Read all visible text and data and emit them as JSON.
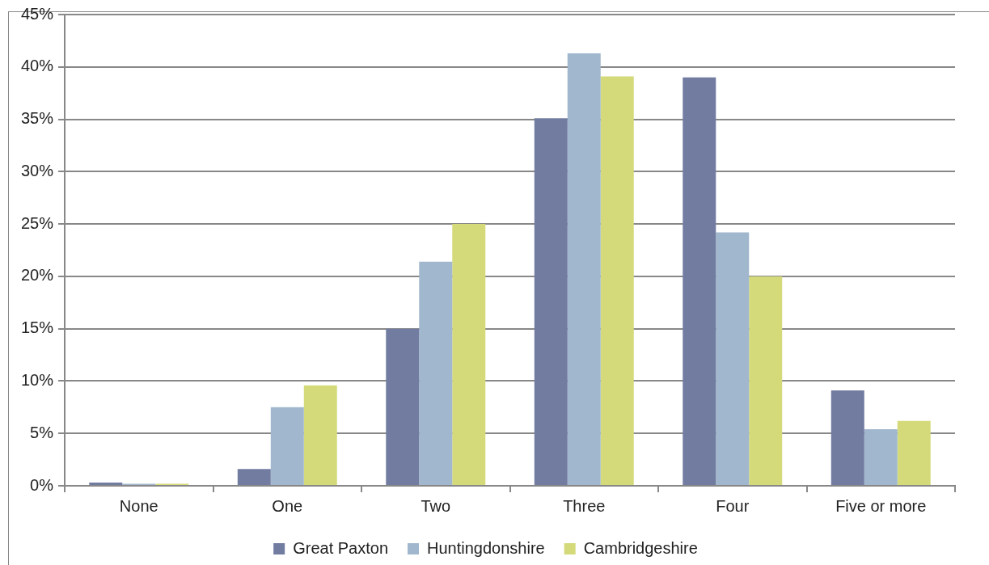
{
  "chart_data": {
    "type": "bar",
    "categories": [
      "None",
      "One",
      "Two",
      "Three",
      "Four",
      "Five or more"
    ],
    "series": [
      {
        "name": "Great Paxton",
        "color": "#727ca1",
        "values": [
          0.3,
          1.6,
          15.0,
          35.1,
          39.0,
          9.1
        ]
      },
      {
        "name": "Huntingdonshire",
        "color": "#a1b7cd",
        "values": [
          0.2,
          7.5,
          21.4,
          41.3,
          24.2,
          5.4
        ]
      },
      {
        "name": "Cambridgeshire",
        "color": "#d4da7a",
        "values": [
          0.2,
          9.6,
          25.0,
          39.1,
          20.0,
          6.2
        ]
      }
    ],
    "ylim": [
      0,
      45
    ],
    "yticks": [
      {
        "value": 0,
        "label": "0%"
      },
      {
        "value": 5,
        "label": "5%"
      },
      {
        "value": 10,
        "label": "10%"
      },
      {
        "value": 15,
        "label": "15%"
      },
      {
        "value": 20,
        "label": "20%"
      },
      {
        "value": 25,
        "label": "25%"
      },
      {
        "value": 30,
        "label": "30%"
      },
      {
        "value": 35,
        "label": "35%"
      },
      {
        "value": 40,
        "label": "40%"
      },
      {
        "value": 45,
        "label": "45%"
      }
    ],
    "grid": "y",
    "legend": "bottom"
  }
}
